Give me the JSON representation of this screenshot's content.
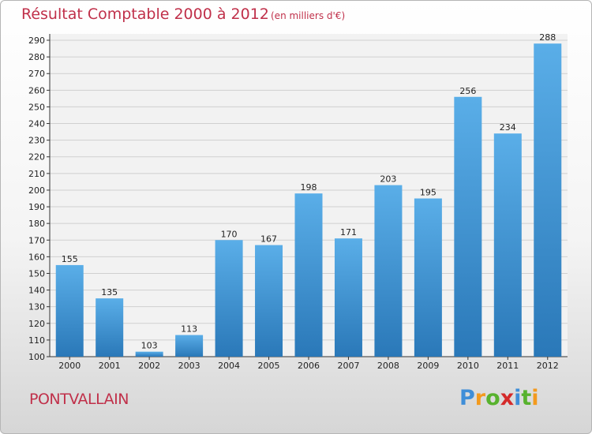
{
  "header": {
    "title": "Résultat Comptable 2000 à 2012",
    "subtitle": "(en milliers d'€)"
  },
  "footer": {
    "place": "PONTVALLAIN",
    "logo_text": "Proxiti"
  },
  "colors": {
    "title": "#c0304a",
    "bar_top": "#5aaee8",
    "bar_bottom": "#2a78b8",
    "grid": "#d0d0d0"
  },
  "chart_data": {
    "type": "bar",
    "title": "Résultat Comptable 2000 à 2012",
    "subtitle": "(en milliers d'€)",
    "xlabel": "",
    "ylabel": "",
    "categories": [
      "2000",
      "2001",
      "2002",
      "2003",
      "2004",
      "2005",
      "2006",
      "2007",
      "2008",
      "2009",
      "2010",
      "2011",
      "2012"
    ],
    "values": [
      155,
      135,
      103,
      113,
      170,
      167,
      198,
      171,
      203,
      195,
      256,
      234,
      288
    ],
    "ylim": [
      100,
      290
    ],
    "ytick_step": 10,
    "grid": true
  }
}
